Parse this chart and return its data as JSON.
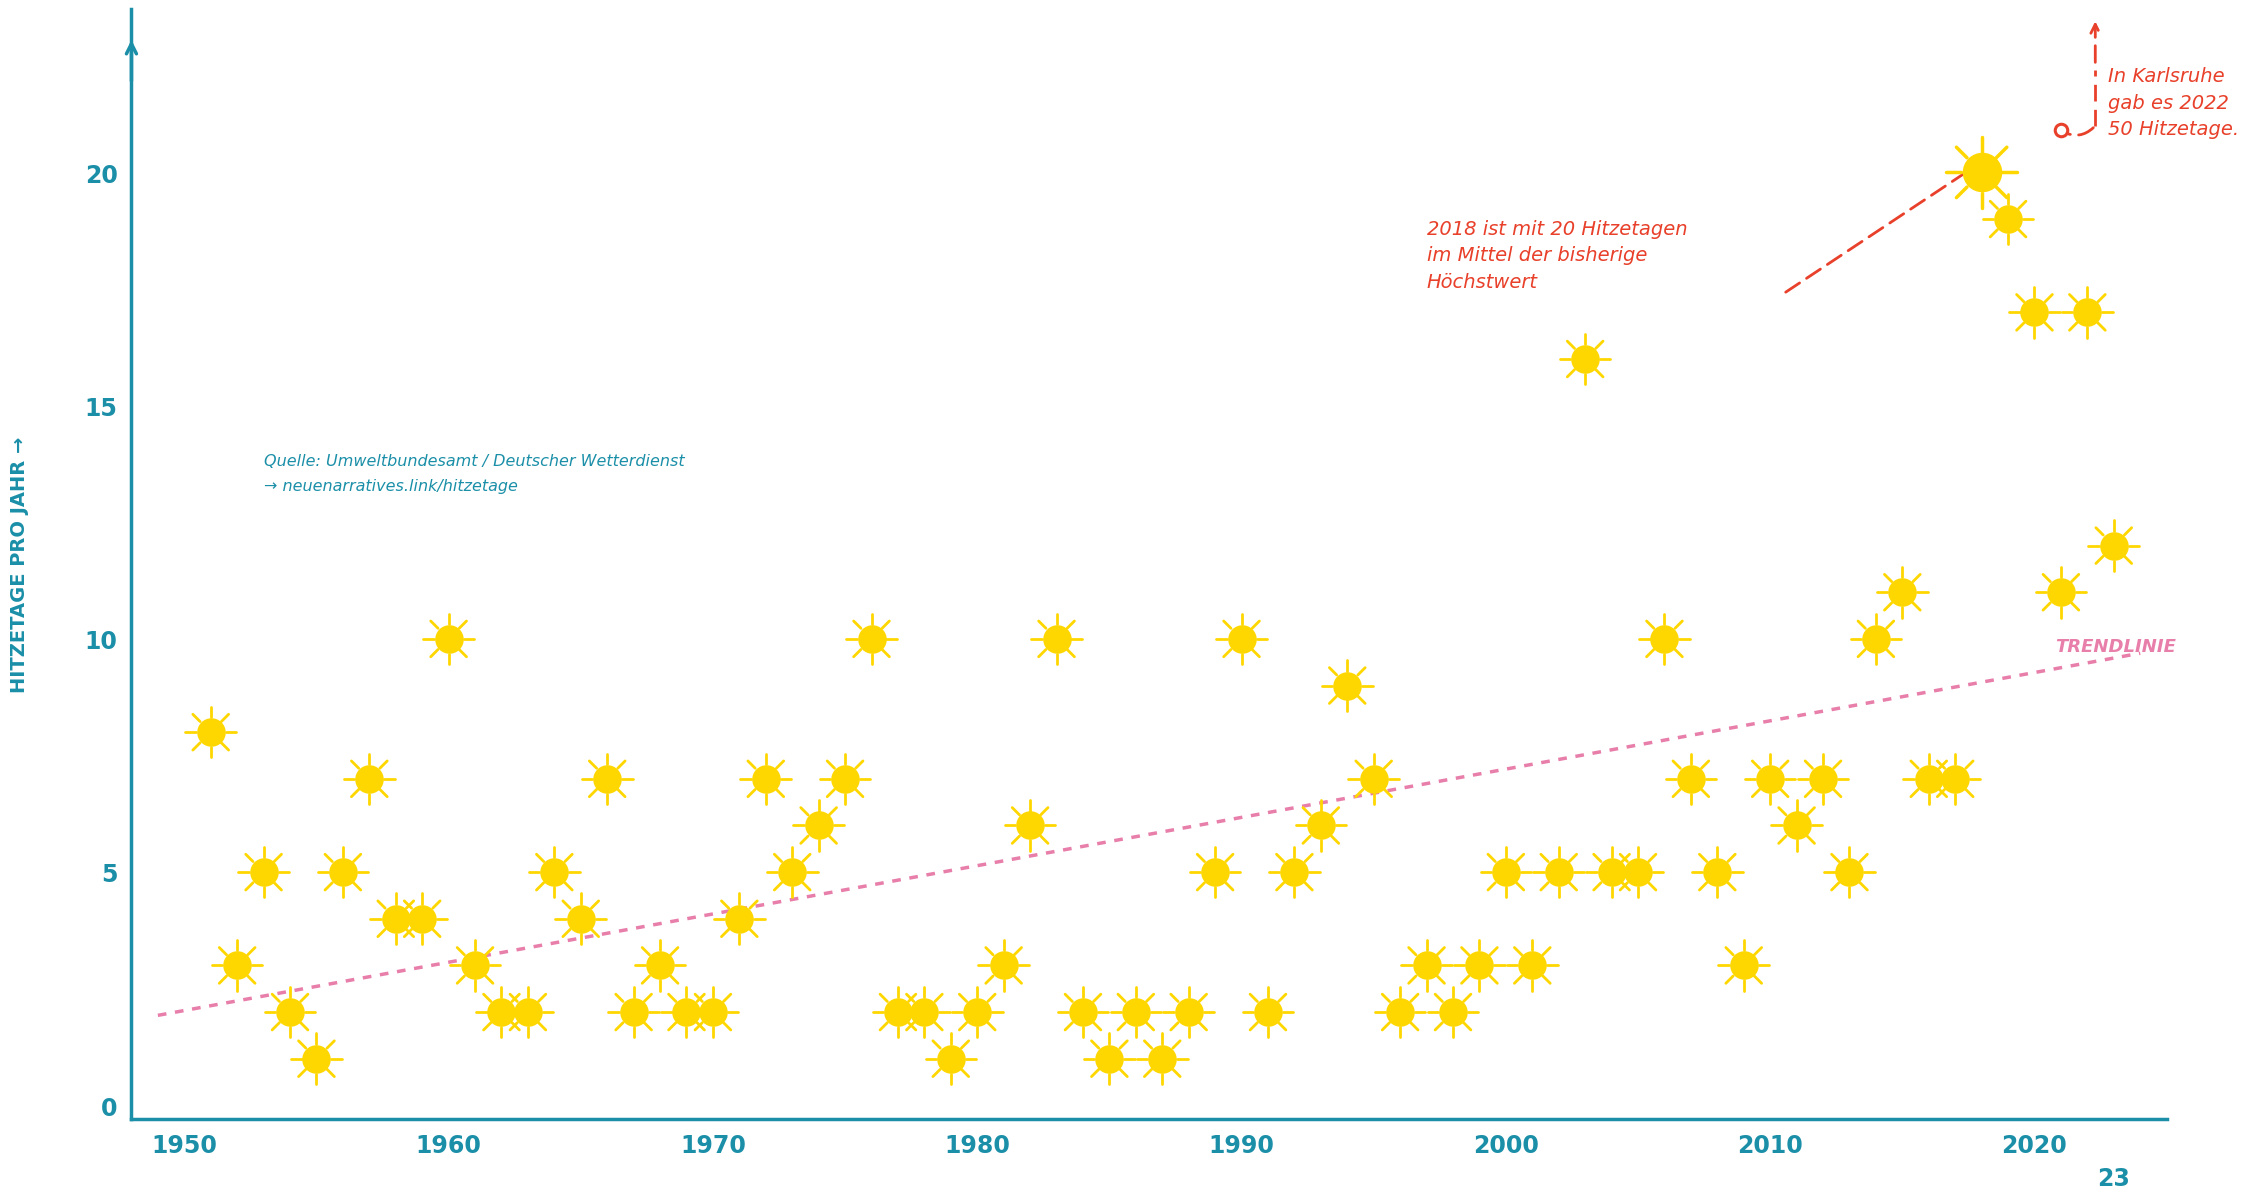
{
  "years": [
    1951,
    1952,
    1953,
    1954,
    1955,
    1956,
    1957,
    1958,
    1959,
    1960,
    1961,
    1962,
    1963,
    1964,
    1965,
    1966,
    1967,
    1968,
    1969,
    1970,
    1971,
    1972,
    1973,
    1974,
    1975,
    1976,
    1977,
    1978,
    1979,
    1980,
    1981,
    1982,
    1983,
    1984,
    1985,
    1986,
    1987,
    1988,
    1989,
    1990,
    1991,
    1992,
    1993,
    1994,
    1995,
    1996,
    1997,
    1998,
    1999,
    2000,
    2001,
    2002,
    2003,
    2004,
    2005,
    2006,
    2007,
    2008,
    2009,
    2010,
    2011,
    2012,
    2013,
    2014,
    2015,
    2016,
    2017,
    2018,
    2019,
    2020,
    2021,
    2022,
    2023
  ],
  "values": [
    8,
    3,
    5,
    2,
    1,
    5,
    7,
    4,
    4,
    10,
    3,
    2,
    2,
    5,
    4,
    7,
    2,
    3,
    2,
    2,
    4,
    7,
    5,
    6,
    7,
    10,
    2,
    2,
    1,
    2,
    3,
    6,
    10,
    2,
    1,
    2,
    1,
    2,
    5,
    10,
    2,
    5,
    6,
    9,
    7,
    2,
    3,
    2,
    3,
    5,
    3,
    5,
    16,
    5,
    5,
    10,
    7,
    5,
    3,
    7,
    6,
    7,
    5,
    10,
    11,
    7,
    7,
    20,
    19,
    17,
    11,
    17,
    12
  ],
  "axis_color": "#1B8FA8",
  "sun_body_color": "#FFD700",
  "sun_ray_color": "#FFD700",
  "trend_color": "#E87EAA",
  "annotation_color": "#E8402A",
  "source_color": "#1B8FA8",
  "highlight_year": 2018,
  "highlight_value": 20,
  "karlsruhe_year": 2022,
  "ylabel": "HITZETAGE PRO JAHR →",
  "source_line1": "Quelle: Umweltbundesamt / Deutscher Wetterdienst",
  "source_line2": "→ neuenarratives.link/hitzetage",
  "annotation_2018": "2018 ist mit 20 Hitzetagen\nim Mittel der bisherige\nHöchstwert",
  "annotation_karlsruhe": "In Karlsruhe\ngab es 2022\n50 Hitzetage.",
  "trendlinie_label": "TRENDLINIE",
  "xlim": [
    1948,
    2025
  ],
  "ylim": [
    -0.3,
    23.5
  ],
  "xticks": [
    1950,
    1960,
    1970,
    1980,
    1990,
    2000,
    2010,
    2020
  ],
  "yticks": [
    0,
    5,
    10,
    15,
    20
  ],
  "background_color": "#FFFFFF"
}
